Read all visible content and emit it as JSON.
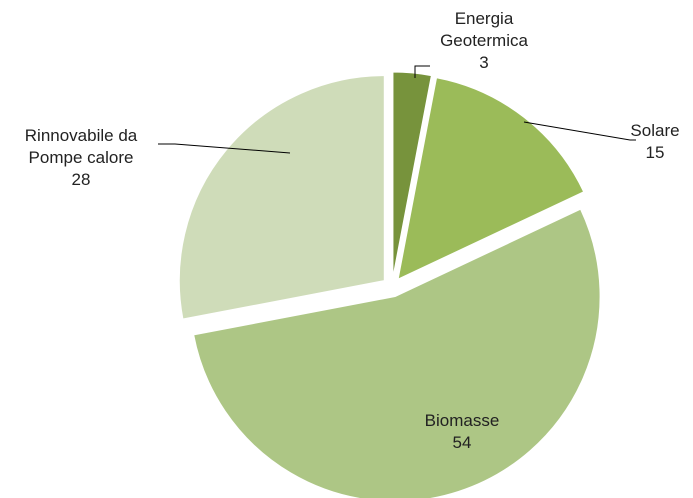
{
  "chart_data": {
    "type": "pie",
    "categories": [
      "Energia Geotermica",
      "Solare",
      "Biomasse",
      "Rinnovabile da Pompe calore"
    ],
    "values": [
      3,
      15,
      54,
      28
    ],
    "colors": [
      "#77933c",
      "#9bbb59",
      "#adc685",
      "#cfdcb9"
    ]
  }
}
